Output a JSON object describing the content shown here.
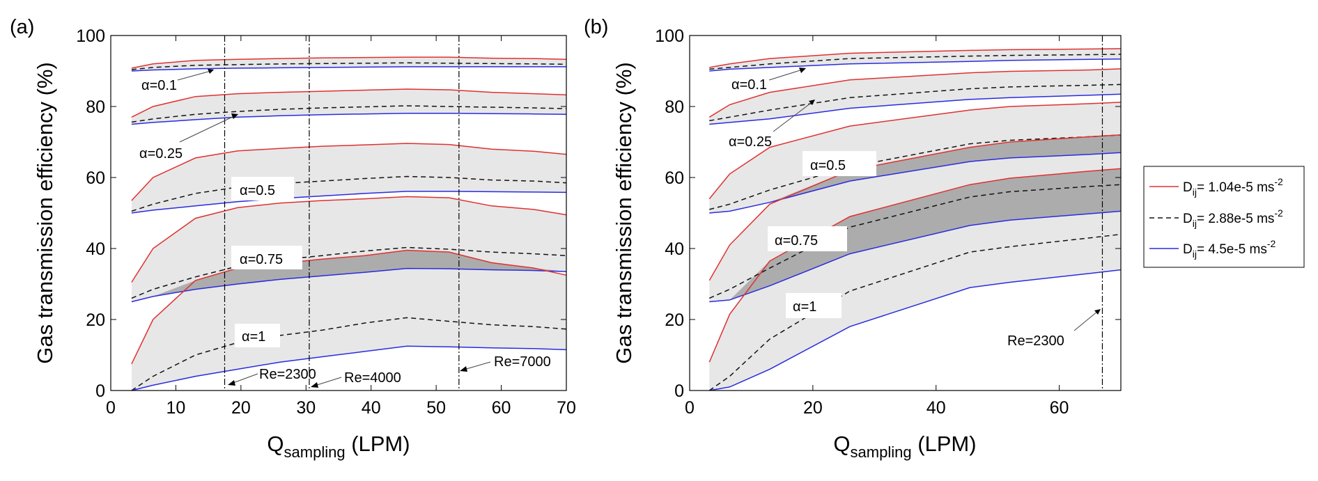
{
  "figure": {
    "panels": [
      {
        "label": "(a)",
        "ylabel": "Gas transmission efficiency (%)",
        "xlabel_main": "Q",
        "xlabel_sub": "sampling",
        "xlabel_unit": " (LPM)",
        "xticks": [
          "0",
          "10",
          "20",
          "30",
          "40",
          "50",
          "60",
          "70"
        ],
        "yticks": [
          "0",
          "20",
          "40",
          "60",
          "80",
          "100"
        ],
        "alpha_labels": [
          "α=0.1",
          "α=0.25",
          "α=0.5",
          "α=0.75",
          "α=1"
        ],
        "re_labels": [
          "Re=2300",
          "Re=4000",
          "Re=7000"
        ]
      },
      {
        "label": "(b)",
        "ylabel": "Gas transmission efficiency (%)",
        "xlabel_main": "Q",
        "xlabel_sub": "sampling",
        "xlabel_unit": " (LPM)",
        "xticks": [
          "0",
          "20",
          "40",
          "60"
        ],
        "yticks": [
          "0",
          "20",
          "40",
          "60",
          "80",
          "100"
        ],
        "alpha_labels": [
          "α=0.1",
          "α=0.25",
          "α=0.5",
          "α=0.75",
          "α=1"
        ],
        "re_labels": [
          "Re=2300"
        ]
      }
    ],
    "legend": {
      "entries": [
        {
          "main": "D",
          "sub": "ij",
          "text": "= 1.04e-5 ms",
          "sup": "-2",
          "color": "#e03030",
          "dash": false
        },
        {
          "main": "D",
          "sub": "ij",
          "text": "= 2.88e-5 ms",
          "sup": "-2",
          "color": "#111111",
          "dash": true
        },
        {
          "main": "D",
          "sub": "ij",
          "text": "= 4.5e-5 ms",
          "sup": "-2",
          "color": "#2a2ae0",
          "dash": false
        }
      ]
    }
  },
  "chart_data": [
    {
      "type": "area",
      "panel": "(a)",
      "xlabel": "Q_sampling (LPM)",
      "ylabel": "Gas transmission efficiency (%)",
      "xlim": [
        0,
        70
      ],
      "ylim": [
        0,
        100
      ],
      "grid": false,
      "colors": {
        "red": "#e03030",
        "black": "#111111",
        "blue": "#2a2ae0",
        "band": "#d3d3d3",
        "overlap": "#9c9c9c"
      },
      "x": [
        3.2,
        6.5,
        13,
        19.5,
        26,
        32.5,
        39,
        45.5,
        52,
        58.5,
        65,
        70
      ],
      "groups": [
        {
          "label": "α=0.1",
          "series": [
            {
              "D": "1.04e-5",
              "values": [
                90.8,
                92.0,
                93.0,
                93.3,
                93.5,
                93.7,
                93.8,
                93.9,
                93.9,
                93.6,
                93.5,
                93.3
              ]
            },
            {
              "D": "2.88e-5",
              "values": [
                90.4,
                91.0,
                91.6,
                91.8,
                92.0,
                92.1,
                92.2,
                92.3,
                92.2,
                92.1,
                92.0,
                91.9
              ]
            },
            {
              "D": "4.5e-5",
              "values": [
                90.0,
                90.3,
                90.6,
                90.8,
                90.9,
                91.0,
                91.1,
                91.2,
                91.2,
                91.2,
                91.2,
                91.2
              ]
            }
          ]
        },
        {
          "label": "α=0.25",
          "series": [
            {
              "D": "1.04e-5",
              "values": [
                77.0,
                80.0,
                82.8,
                83.6,
                84.0,
                84.3,
                84.6,
                84.9,
                84.7,
                84.0,
                83.6,
                83.3
              ]
            },
            {
              "D": "2.88e-5",
              "values": [
                75.6,
                76.5,
                77.8,
                78.6,
                79.2,
                79.6,
                79.9,
                80.2,
                80.0,
                79.8,
                79.6,
                79.4
              ]
            },
            {
              "D": "4.5e-5",
              "values": [
                75.0,
                75.5,
                76.3,
                77.0,
                77.4,
                77.7,
                77.9,
                78.1,
                78.1,
                78.0,
                77.9,
                77.8
              ]
            }
          ]
        },
        {
          "label": "α=0.5",
          "series": [
            {
              "D": "1.04e-5",
              "values": [
                53.5,
                60.0,
                65.5,
                67.5,
                68.2,
                68.8,
                69.2,
                69.6,
                69.3,
                68.0,
                67.4,
                66.5
              ]
            },
            {
              "D": "2.88e-5",
              "values": [
                50.5,
                52.5,
                55.5,
                57.3,
                58.3,
                59.0,
                59.7,
                60.3,
                60.0,
                59.3,
                59.0,
                58.5
              ]
            },
            {
              "D": "4.5e-5",
              "values": [
                50.0,
                50.8,
                52.0,
                53.2,
                54.1,
                54.8,
                55.5,
                56.1,
                56.1,
                56.0,
                55.9,
                55.8
              ]
            }
          ]
        },
        {
          "label": "α=0.75",
          "series": [
            {
              "D": "1.04e-5",
              "values": [
                30.5,
                40.0,
                48.5,
                51.5,
                52.8,
                53.5,
                54.0,
                54.6,
                54.3,
                52.0,
                51.0,
                49.5
              ]
            },
            {
              "D": "2.88e-5",
              "values": [
                26.0,
                28.5,
                32.0,
                35.0,
                36.8,
                38.0,
                39.3,
                40.3,
                39.8,
                39.0,
                38.5,
                38.0
              ]
            },
            {
              "D": "4.5e-5",
              "values": [
                25.0,
                26.5,
                28.5,
                30.0,
                31.3,
                32.3,
                33.3,
                34.4,
                34.3,
                34.0,
                33.8,
                33.5
              ]
            }
          ]
        },
        {
          "label": "α=1",
          "series": [
            {
              "D": "1.04e-5",
              "values": [
                7.5,
                20.0,
                31.0,
                34.5,
                35.8,
                37.0,
                38.0,
                39.5,
                39.0,
                36.0,
                34.5,
                32.5
              ]
            },
            {
              "D": "2.88e-5",
              "values": [
                0.0,
                4.0,
                10.0,
                13.5,
                15.5,
                17.0,
                19.0,
                20.5,
                19.5,
                18.5,
                18.0,
                17.3
              ]
            },
            {
              "D": "4.5e-5",
              "values": [
                0.0,
                1.5,
                4.0,
                6.0,
                8.0,
                9.5,
                11.0,
                12.5,
                12.3,
                12.0,
                11.8,
                11.5
              ]
            }
          ]
        }
      ],
      "vlines": [
        {
          "x": 17.5,
          "label": "Re=2300"
        },
        {
          "x": 30.5,
          "label": "Re=4000"
        },
        {
          "x": 53.5,
          "label": "Re=7000"
        }
      ]
    },
    {
      "type": "area",
      "panel": "(b)",
      "xlabel": "Q_sampling (LPM)",
      "ylabel": "Gas transmission efficiency (%)",
      "xlim": [
        0,
        70
      ],
      "ylim": [
        0,
        100
      ],
      "grid": false,
      "colors": {
        "red": "#e03030",
        "black": "#111111",
        "blue": "#2a2ae0",
        "band": "#d3d3d3",
        "overlap": "#9c9c9c"
      },
      "x": [
        3.2,
        6.5,
        13,
        26,
        45.5,
        52,
        65,
        70
      ],
      "groups": [
        {
          "label": "α=0.1",
          "series": [
            {
              "D": "1.04e-5",
              "values": [
                91.0,
                92.0,
                93.5,
                95.0,
                95.8,
                96.0,
                96.2,
                96.3
              ]
            },
            {
              "D": "2.88e-5",
              "values": [
                90.5,
                91.0,
                92.0,
                93.5,
                94.2,
                94.4,
                94.6,
                94.7
              ]
            },
            {
              "D": "4.5e-5",
              "values": [
                90.0,
                90.5,
                91.0,
                92.0,
                92.7,
                93.0,
                93.3,
                93.4
              ]
            }
          ]
        },
        {
          "label": "α=0.25",
          "series": [
            {
              "D": "1.04e-5",
              "values": [
                77.0,
                80.5,
                84.0,
                87.5,
                89.5,
                89.9,
                90.3,
                90.6
              ]
            },
            {
              "D": "2.88e-5",
              "values": [
                76.0,
                77.0,
                79.0,
                82.5,
                85.0,
                85.5,
                86.0,
                86.2
              ]
            },
            {
              "D": "4.5e-5",
              "values": [
                75.0,
                75.5,
                76.5,
                79.5,
                82.0,
                82.5,
                83.2,
                83.5
              ]
            }
          ]
        },
        {
          "label": "α=0.5",
          "series": [
            {
              "D": "1.04e-5",
              "values": [
                54.0,
                61.0,
                68.5,
                74.5,
                79.0,
                80.0,
                80.8,
                81.2
              ]
            },
            {
              "D": "2.88e-5",
              "values": [
                51.0,
                52.5,
                56.5,
                63.0,
                69.5,
                70.5,
                71.5,
                72.0
              ]
            },
            {
              "D": "4.5e-5",
              "values": [
                50.0,
                50.5,
                53.0,
                59.0,
                64.5,
                65.5,
                66.5,
                67.0
              ]
            }
          ]
        },
        {
          "label": "α=0.75",
          "series": [
            {
              "D": "1.04e-5",
              "values": [
                31.0,
                41.0,
                52.5,
                62.0,
                68.5,
                70.0,
                71.5,
                72.0
              ]
            },
            {
              "D": "2.88e-5",
              "values": [
                26.0,
                28.5,
                34.5,
                46.0,
                54.5,
                56.0,
                57.5,
                58.0
              ]
            },
            {
              "D": "4.5e-5",
              "values": [
                25.0,
                25.5,
                29.5,
                38.5,
                46.5,
                48.0,
                49.8,
                50.5
              ]
            }
          ]
        },
        {
          "label": "α=1",
          "series": [
            {
              "D": "1.04e-5",
              "values": [
                8.0,
                21.5,
                36.5,
                49.0,
                58.0,
                59.8,
                61.8,
                62.5
              ]
            },
            {
              "D": "2.88e-5",
              "values": [
                0.0,
                4.0,
                14.5,
                28.0,
                39.0,
                40.5,
                43.0,
                44.0
              ]
            },
            {
              "D": "4.5e-5",
              "values": [
                0.0,
                1.0,
                6.0,
                18.0,
                29.0,
                30.5,
                33.0,
                34.0
              ]
            }
          ]
        }
      ],
      "vlines": [
        {
          "x": 67,
          "label": "Re=2300"
        }
      ]
    }
  ]
}
